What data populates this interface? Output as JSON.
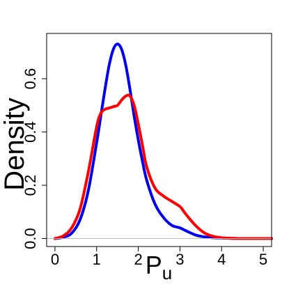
{
  "chart_data": {
    "type": "line",
    "title": "",
    "xlabel": "P",
    "xlabel_subscript": "u",
    "ylabel": "Density",
    "xlim": [
      -0.2,
      5.2
    ],
    "ylim": [
      -0.03,
      0.77
    ],
    "x_ticks": [
      0,
      1,
      2,
      3,
      4,
      5
    ],
    "y_ticks": [
      0.0,
      0.2,
      0.4,
      0.6
    ],
    "x_tick_labels": [
      "0",
      "1",
      "2",
      "3",
      "4",
      "5"
    ],
    "y_tick_labels": [
      "0.0",
      "0.2",
      "0.4",
      "0.6"
    ],
    "grid": false,
    "legend": "none",
    "baseline": 0,
    "series": [
      {
        "color": "#0000ee",
        "x": [
          0.0,
          0.2,
          0.4,
          0.6,
          0.8,
          1.0,
          1.1,
          1.2,
          1.3,
          1.4,
          1.5,
          1.6,
          1.7,
          1.8,
          1.9,
          2.0,
          2.1,
          2.2,
          2.4,
          2.6,
          2.8,
          3.0,
          3.2,
          3.4,
          3.6,
          3.8,
          4.0,
          4.2,
          4.5,
          5.0,
          5.2
        ],
        "values": [
          0.0,
          0.005,
          0.02,
          0.07,
          0.18,
          0.36,
          0.46,
          0.56,
          0.65,
          0.71,
          0.73,
          0.71,
          0.65,
          0.56,
          0.46,
          0.37,
          0.29,
          0.22,
          0.13,
          0.08,
          0.05,
          0.04,
          0.025,
          0.012,
          0.006,
          0.003,
          0.002,
          0.001,
          0.0,
          0.0,
          0.0
        ]
      },
      {
        "color": "#ff0000",
        "x": [
          0.0,
          0.2,
          0.4,
          0.6,
          0.8,
          1.0,
          1.1,
          1.2,
          1.3,
          1.4,
          1.5,
          1.6,
          1.7,
          1.8,
          1.9,
          2.0,
          2.1,
          2.2,
          2.4,
          2.6,
          2.8,
          3.0,
          3.1,
          3.2,
          3.4,
          3.6,
          3.8,
          4.0,
          4.2,
          4.5,
          5.0,
          5.2
        ],
        "values": [
          0.0,
          0.01,
          0.04,
          0.11,
          0.25,
          0.42,
          0.47,
          0.485,
          0.49,
          0.495,
          0.5,
          0.52,
          0.535,
          0.535,
          0.5,
          0.43,
          0.35,
          0.27,
          0.19,
          0.16,
          0.14,
          0.12,
          0.1,
          0.08,
          0.045,
          0.02,
          0.008,
          0.003,
          0.001,
          0.0,
          0.0,
          0.0
        ]
      }
    ]
  }
}
